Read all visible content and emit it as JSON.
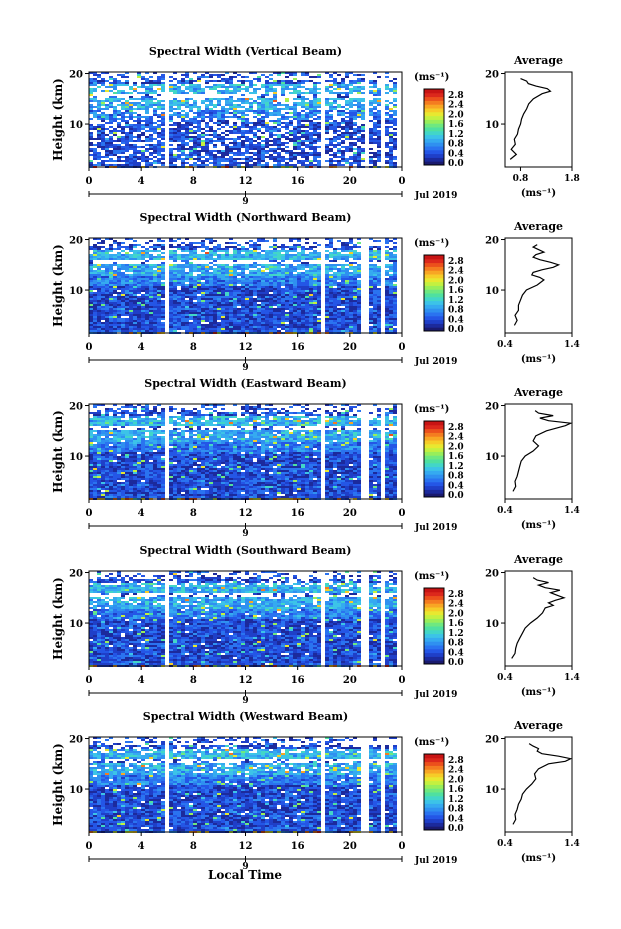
{
  "figure": {
    "xlabel": "Local Time",
    "date_label": "Jul 2019",
    "cbar_unit": "(ms⁻¹)",
    "average_title": "Average",
    "average_unit": "(ms⁻¹)"
  },
  "colorscale": [
    "#1a1a6e",
    "#1c2a9c",
    "#1f3fc8",
    "#2456e6",
    "#2a73f0",
    "#2f90f0",
    "#35aaf0",
    "#3cc3e8",
    "#42d6c8",
    "#4fe0a0",
    "#6ee880",
    "#98ee5a",
    "#c4f040",
    "#e8e830",
    "#f6cc28",
    "#f8a624",
    "#f47c20",
    "#ec501c",
    "#dc281c",
    "#c81414"
  ],
  "chart_data": [
    {
      "type": "heatmap",
      "title": "Spectral Width (Vertical Beam)",
      "ylabel": "Height (km)",
      "xlabel": "",
      "xlim": [
        0,
        24
      ],
      "ylim": [
        1.5,
        20.3
      ],
      "xticks": [
        "0",
        "4",
        "8",
        "12",
        "16",
        "20",
        "0"
      ],
      "yticks": [
        "10",
        "20"
      ],
      "colorbar": {
        "min": 0.0,
        "max": 2.8,
        "ticks": [
          "2.8",
          "2.4",
          "2.0",
          "1.6",
          "1.2",
          "0.8",
          "0.4",
          "0.0"
        ]
      },
      "data_gaps_hours": [
        [
          5.6,
          6.0
        ],
        [
          17.7,
          18.0
        ],
        [
          21.0,
          21.4
        ],
        [
          22.2,
          22.6
        ],
        [
          23.5,
          24.0
        ]
      ],
      "avg": {
        "xlim": [
          0.5,
          1.8
        ],
        "xticks": [
          "0.8",
          "1.8"
        ],
        "yticks": [
          "10",
          "20"
        ],
        "profile": [
          [
            3,
            0.6
          ],
          [
            4,
            0.72
          ],
          [
            5,
            0.62
          ],
          [
            6,
            0.7
          ],
          [
            7,
            0.68
          ],
          [
            8,
            0.74
          ],
          [
            9,
            0.76
          ],
          [
            10,
            0.8
          ],
          [
            11,
            0.82
          ],
          [
            12,
            0.86
          ],
          [
            13,
            0.92
          ],
          [
            14,
            0.96
          ],
          [
            15,
            1.05
          ],
          [
            16,
            1.22
          ],
          [
            16.5,
            1.38
          ],
          [
            17,
            1.32
          ],
          [
            17.5,
            1.1
          ],
          [
            18,
            0.95
          ],
          [
            18.5,
            0.92
          ],
          [
            19,
            0.8
          ]
        ]
      }
    },
    {
      "type": "heatmap",
      "title": "Spectral Width (Northward Beam)",
      "ylabel": "Height (km)",
      "xlabel": "",
      "xlim": [
        0,
        24
      ],
      "ylim": [
        1.5,
        20.3
      ],
      "xticks": [
        "0",
        "4",
        "8",
        "12",
        "16",
        "20",
        "0"
      ],
      "yticks": [
        "10",
        "20"
      ],
      "colorbar": {
        "min": 0.0,
        "max": 2.8,
        "ticks": [
          "2.8",
          "2.4",
          "2.0",
          "1.6",
          "1.2",
          "0.8",
          "0.4",
          "0.0"
        ]
      },
      "data_gaps_hours": [
        [
          5.6,
          6.0
        ],
        [
          17.7,
          18.0
        ],
        [
          20.8,
          21.3
        ],
        [
          22.1,
          22.6
        ],
        [
          23.4,
          24.0
        ]
      ],
      "avg": {
        "xlim": [
          0.4,
          1.4
        ],
        "xticks": [
          "0.4",
          "1.4"
        ],
        "yticks": [
          "10",
          "20"
        ],
        "profile": [
          [
            3,
            0.54
          ],
          [
            4,
            0.58
          ],
          [
            5,
            0.55
          ],
          [
            6,
            0.6
          ],
          [
            7,
            0.6
          ],
          [
            8,
            0.63
          ],
          [
            9,
            0.66
          ],
          [
            10,
            0.72
          ],
          [
            11,
            0.88
          ],
          [
            12,
            0.98
          ],
          [
            12.5,
            0.92
          ],
          [
            13,
            0.8
          ],
          [
            13.5,
            0.82
          ],
          [
            14,
            0.95
          ],
          [
            14.5,
            1.12
          ],
          [
            15,
            1.2
          ],
          [
            15.5,
            1.08
          ],
          [
            16,
            0.92
          ],
          [
            16.5,
            0.82
          ],
          [
            17,
            0.86
          ],
          [
            17.5,
            0.98
          ],
          [
            18,
            0.9
          ],
          [
            18.5,
            0.82
          ],
          [
            19,
            0.88
          ]
        ]
      }
    },
    {
      "type": "heatmap",
      "title": "Spectral Width (Eastward Beam)",
      "ylabel": "Height (km)",
      "xlabel": "",
      "xlim": [
        0,
        24
      ],
      "ylim": [
        1.5,
        20.3
      ],
      "xticks": [
        "0",
        "4",
        "8",
        "12",
        "16",
        "20",
        "0"
      ],
      "yticks": [
        "10",
        "20"
      ],
      "colorbar": {
        "min": 0.0,
        "max": 2.8,
        "ticks": [
          "2.8",
          "2.4",
          "2.0",
          "1.6",
          "1.2",
          "0.8",
          "0.4",
          "0.0"
        ]
      },
      "data_gaps_hours": [
        [
          5.6,
          6.0
        ],
        [
          17.7,
          18.0
        ],
        [
          20.8,
          21.3
        ],
        [
          22.1,
          22.6
        ],
        [
          23.4,
          24.0
        ]
      ],
      "avg": {
        "xlim": [
          0.4,
          1.4
        ],
        "xticks": [
          "0.4",
          "1.4"
        ],
        "yticks": [
          "10",
          "20"
        ],
        "profile": [
          [
            3,
            0.52
          ],
          [
            4,
            0.56
          ],
          [
            5,
            0.55
          ],
          [
            6,
            0.58
          ],
          [
            7,
            0.6
          ],
          [
            8,
            0.62
          ],
          [
            9,
            0.64
          ],
          [
            10,
            0.7
          ],
          [
            11,
            0.82
          ],
          [
            12,
            0.9
          ],
          [
            13,
            0.82
          ],
          [
            14,
            0.86
          ],
          [
            15,
            1.02
          ],
          [
            16,
            1.3
          ],
          [
            16.5,
            1.38
          ],
          [
            17,
            1.05
          ],
          [
            17.5,
            0.92
          ],
          [
            18,
            1.12
          ],
          [
            18.5,
            0.9
          ],
          [
            19,
            0.85
          ]
        ]
      }
    },
    {
      "type": "heatmap",
      "title": "Spectral Width (Southward Beam)",
      "ylabel": "Height (km)",
      "xlabel": "",
      "xlim": [
        0,
        24
      ],
      "ylim": [
        1.5,
        20.3
      ],
      "xticks": [
        "0",
        "4",
        "8",
        "12",
        "16",
        "20",
        "0"
      ],
      "yticks": [
        "10",
        "20"
      ],
      "colorbar": {
        "min": 0.0,
        "max": 2.8,
        "ticks": [
          "2.8",
          "2.4",
          "2.0",
          "1.6",
          "1.2",
          "0.8",
          "0.4",
          "0.0"
        ]
      },
      "data_gaps_hours": [
        [
          5.6,
          6.0
        ],
        [
          17.7,
          18.0
        ],
        [
          20.8,
          21.3
        ],
        [
          22.1,
          22.6
        ],
        [
          23.4,
          24.0
        ]
      ],
      "avg": {
        "xlim": [
          0.4,
          1.4
        ],
        "xticks": [
          "0.4",
          "1.4"
        ],
        "yticks": [
          "10",
          "20"
        ],
        "profile": [
          [
            3,
            0.5
          ],
          [
            4,
            0.55
          ],
          [
            5,
            0.56
          ],
          [
            6,
            0.58
          ],
          [
            7,
            0.62
          ],
          [
            8,
            0.66
          ],
          [
            9,
            0.7
          ],
          [
            10,
            0.78
          ],
          [
            11,
            0.88
          ],
          [
            12,
            0.96
          ],
          [
            13,
            1.0
          ],
          [
            13.5,
            1.12
          ],
          [
            14,
            1.05
          ],
          [
            14.5,
            1.15
          ],
          [
            15,
            1.28
          ],
          [
            15.5,
            1.18
          ],
          [
            16,
            1.08
          ],
          [
            16.5,
            1.22
          ],
          [
            17,
            1.0
          ],
          [
            17.5,
            0.9
          ],
          [
            18,
            1.05
          ],
          [
            18.5,
            0.88
          ],
          [
            19,
            0.82
          ]
        ]
      }
    },
    {
      "type": "heatmap",
      "title": "Spectral Width (Westward Beam)",
      "ylabel": "Height (km)",
      "xlabel": "",
      "xlim": [
        0,
        24
      ],
      "ylim": [
        1.5,
        20.3
      ],
      "xticks": [
        "0",
        "4",
        "8",
        "12",
        "16",
        "20",
        "0"
      ],
      "yticks": [
        "10",
        "20"
      ],
      "colorbar": {
        "min": 0.0,
        "max": 2.8,
        "ticks": [
          "2.8",
          "2.4",
          "2.0",
          "1.6",
          "1.2",
          "0.8",
          "0.4",
          "0.0"
        ]
      },
      "data_gaps_hours": [
        [
          5.6,
          6.0
        ],
        [
          17.7,
          18.0
        ],
        [
          20.8,
          21.3
        ],
        [
          22.1,
          22.6
        ],
        [
          23.4,
          24.0
        ]
      ],
      "avg": {
        "xlim": [
          0.4,
          1.4
        ],
        "xticks": [
          "0.4",
          "1.4"
        ],
        "yticks": [
          "10",
          "20"
        ],
        "profile": [
          [
            3,
            0.52
          ],
          [
            4,
            0.56
          ],
          [
            5,
            0.55
          ],
          [
            6,
            0.58
          ],
          [
            7,
            0.6
          ],
          [
            8,
            0.64
          ],
          [
            9,
            0.66
          ],
          [
            10,
            0.72
          ],
          [
            11,
            0.8
          ],
          [
            12,
            0.86
          ],
          [
            13,
            0.84
          ],
          [
            14,
            0.9
          ],
          [
            15,
            1.05
          ],
          [
            15.5,
            1.3
          ],
          [
            16,
            1.38
          ],
          [
            16.5,
            1.2
          ],
          [
            17,
            0.95
          ],
          [
            17.5,
            0.88
          ],
          [
            18,
            0.9
          ],
          [
            18.5,
            0.82
          ],
          [
            19,
            0.76
          ]
        ]
      }
    }
  ]
}
